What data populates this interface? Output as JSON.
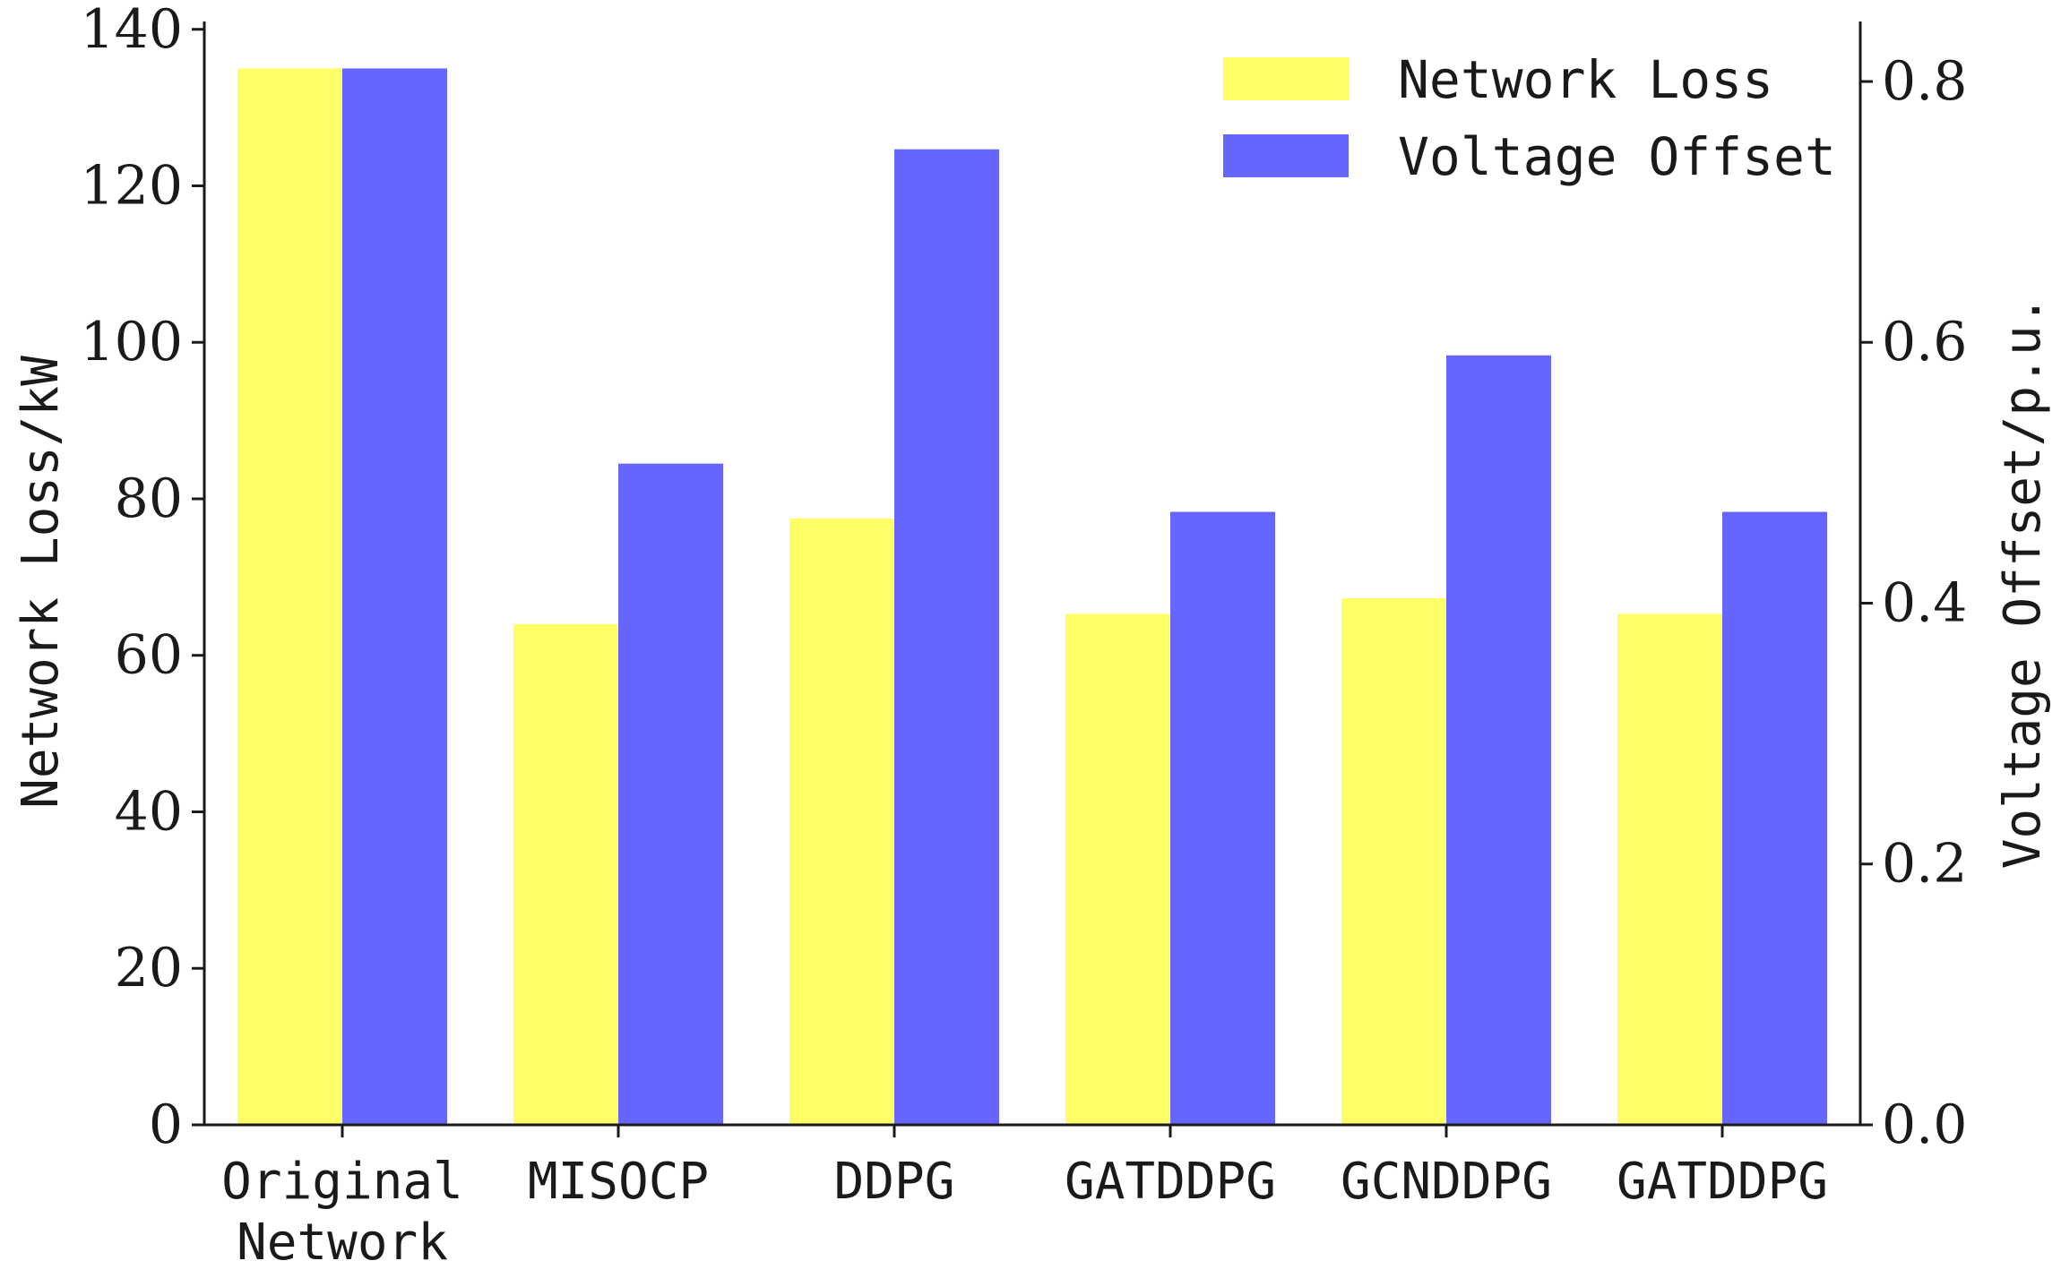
{
  "chart_data": {
    "type": "bar",
    "categories": [
      [
        "Original",
        "Network"
      ],
      [
        "MISOCP"
      ],
      [
        "DDPG"
      ],
      [
        "GATDDPG"
      ],
      [
        "GCNDDPG"
      ],
      [
        "GATDDPG"
      ]
    ],
    "series": [
      {
        "name": "Network Loss",
        "axis": "left",
        "color": "#ffff66",
        "values": [
          135,
          64,
          77.5,
          65.3,
          67.3,
          65.3
        ]
      },
      {
        "name": "Voltage Offset",
        "axis": "right",
        "color": "#6666ff",
        "values": [
          0.81,
          0.507,
          0.748,
          0.47,
          0.59,
          0.47
        ]
      }
    ],
    "ylabel": "Network Loss/kW",
    "ylabel_right": "Voltage Offset/p.u.",
    "ylim": [
      0,
      141
    ],
    "ylim_right": [
      0,
      0.846
    ],
    "yticks": [
      "0",
      "20",
      "40",
      "60",
      "80",
      "100",
      "120",
      "140"
    ],
    "yticks_right": [
      "0.0",
      "0.2",
      "0.4",
      "0.6",
      "0.8"
    ],
    "legend_position": "top-right",
    "grid": false
  }
}
